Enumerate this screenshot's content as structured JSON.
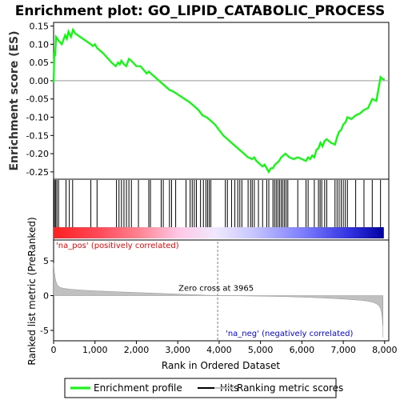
{
  "chart_data": {
    "type": "line",
    "title": "Enrichment plot: GO_LIPID_CATABOLIC_PROCESS",
    "top_panel": {
      "ylabel": "Enrichment score (ES)",
      "ylim": [
        -0.27,
        0.16
      ],
      "yticks": [
        "0.15",
        "0.10",
        "0.05",
        "0.00",
        "-0.05",
        "-0.10",
        "-0.15",
        "-0.20",
        "-0.25"
      ],
      "ytick_values": [
        0.15,
        0.1,
        0.05,
        0.0,
        -0.05,
        -0.1,
        -0.15,
        -0.2,
        -0.25
      ],
      "series": [
        {
          "name": "Enrichment profile",
          "color": "#00ff00",
          "x": [
            0,
            20,
            40,
            60,
            120,
            200,
            280,
            320,
            360,
            420,
            470,
            520,
            900,
            950,
            1000,
            1050,
            1200,
            1400,
            1500,
            1560,
            1600,
            1640,
            1700,
            1760,
            1820,
            1880,
            2000,
            2100,
            2250,
            2300,
            2350,
            2500,
            2650,
            2800,
            2900,
            3100,
            3300,
            3500,
            3600,
            3700,
            3800,
            3900,
            4000,
            4100,
            4200,
            4300,
            4400,
            4500,
            4600,
            4700,
            4800,
            4850,
            4900,
            4950,
            5000,
            5050,
            5100,
            5150,
            5200,
            5250,
            5300,
            5350,
            5400,
            5450,
            5500,
            5550,
            5600,
            5650,
            5700,
            5800,
            5900,
            6000,
            6100,
            6150,
            6200,
            6250,
            6300,
            6350,
            6400,
            6450,
            6500,
            6550,
            6600,
            6700,
            6800,
            6850,
            6900,
            6950,
            7000,
            7050,
            7100,
            7200,
            7300,
            7400,
            7500,
            7600,
            7700,
            7800,
            7900,
            7950,
            8000
          ],
          "y": [
            -0.005,
            0.08,
            0.075,
            0.12,
            0.11,
            0.1,
            0.125,
            0.115,
            0.135,
            0.12,
            0.14,
            0.13,
            0.1,
            0.095,
            0.1,
            0.09,
            0.075,
            0.05,
            0.04,
            0.05,
            0.045,
            0.055,
            0.045,
            0.04,
            0.06,
            0.055,
            0.04,
            0.04,
            0.02,
            0.025,
            0.02,
            0.005,
            -0.01,
            -0.025,
            -0.03,
            -0.045,
            -0.06,
            -0.08,
            -0.095,
            -0.1,
            -0.11,
            -0.12,
            -0.135,
            -0.15,
            -0.16,
            -0.17,
            -0.18,
            -0.19,
            -0.2,
            -0.21,
            -0.215,
            -0.21,
            -0.22,
            -0.225,
            -0.23,
            -0.235,
            -0.23,
            -0.24,
            -0.25,
            -0.24,
            -0.24,
            -0.23,
            -0.225,
            -0.22,
            -0.21,
            -0.205,
            -0.2,
            -0.205,
            -0.21,
            -0.215,
            -0.21,
            -0.215,
            -0.22,
            -0.21,
            -0.215,
            -0.205,
            -0.21,
            -0.19,
            -0.185,
            -0.17,
            -0.18,
            -0.165,
            -0.16,
            -0.17,
            -0.175,
            -0.155,
            -0.14,
            -0.135,
            -0.12,
            -0.115,
            -0.1,
            -0.105,
            -0.095,
            -0.09,
            -0.08,
            -0.075,
            -0.05,
            -0.055,
            0.01,
            0.005,
            0.003
          ]
        }
      ]
    },
    "hits_panel": {
      "hit_positions": [
        20,
        50,
        80,
        120,
        300,
        380,
        460,
        900,
        1050,
        1520,
        1580,
        1640,
        1700,
        1760,
        1820,
        1880,
        2050,
        2300,
        2340,
        2600,
        2650,
        2800,
        2850,
        2950,
        3200,
        3300,
        3350,
        3400,
        3450,
        3550,
        3620,
        3680,
        3720,
        3760,
        3800,
        4150,
        4200,
        4300,
        4380,
        4450,
        4500,
        4550,
        4700,
        4760,
        4800,
        4850,
        4950,
        5050,
        5150,
        5200,
        5300,
        5340,
        5380,
        5420,
        5460,
        5500,
        5540,
        5580,
        5620,
        5660,
        5900,
        6100,
        6150,
        6300,
        6400,
        6440,
        6480,
        6550,
        6600,
        6800,
        6850,
        6900,
        6950,
        7000,
        7050,
        7100,
        7300,
        7500,
        7700,
        7900
      ]
    },
    "rank_panel": {
      "ylabel": "Ranked list metric (PreRanked)",
      "ylim": [
        -6.5,
        8.0
      ],
      "yticks": [
        "5",
        "0",
        "-5"
      ],
      "ytick_values": [
        5,
        0,
        -5
      ],
      "pos_label": "'na_pos' (positively correlated)",
      "neg_label": "'na_neg' (negatively correlated)",
      "zero_cross_label": "Zero cross at 3965",
      "zero_cross": 3965
    },
    "xaxis": {
      "label": "Rank in Ordered Dataset",
      "xlim": [
        0,
        8100
      ],
      "ticks": [
        "0",
        "1,000",
        "2,000",
        "3,000",
        "4,000",
        "5,000",
        "6,000",
        "7,000",
        "8,000"
      ],
      "tick_values": [
        0,
        1000,
        2000,
        3000,
        4000,
        5000,
        6000,
        7000,
        8000
      ]
    },
    "legend": {
      "placement": "bottom",
      "items": [
        {
          "label": "Enrichment profile",
          "color": "#00ff00"
        },
        {
          "label": "Hits",
          "color": "#000000"
        },
        {
          "label": "Ranking metric scores",
          "color": "#c0c0c0"
        }
      ]
    },
    "colors": {
      "profile": "#00ff00",
      "pos_label": "#ff0000",
      "neg_label": "#0000ff",
      "zero_line": "#808080"
    }
  }
}
